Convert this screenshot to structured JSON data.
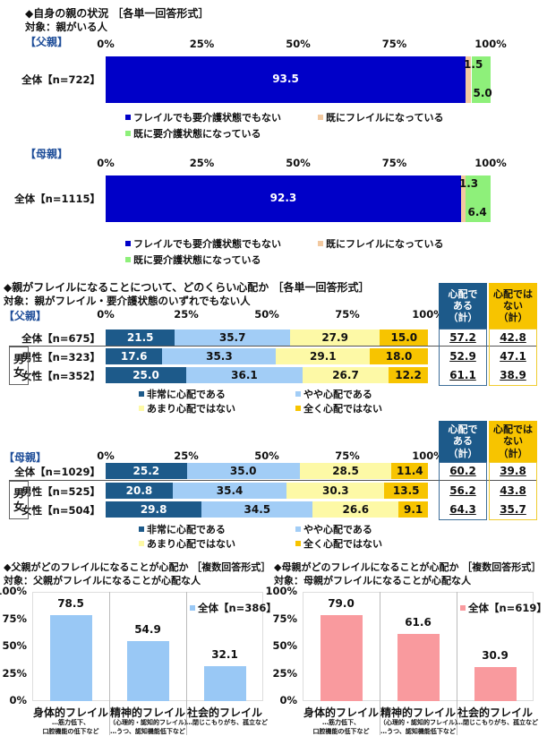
{
  "section1": {
    "title": "◆自身の親の状況 ［各単一回答形式］",
    "subtitle": "対象：親がいる人",
    "ticks": [
      "0%",
      "25%",
      "50%",
      "75%",
      "100%"
    ],
    "legend": [
      "フレイルでも要介護状態でもない",
      "既にフレイルになっている",
      "既に要介護状態になっている"
    ],
    "colors": [
      "#0000c8",
      "#f2c9a0",
      "#8ef07a"
    ]
  },
  "section2": {
    "title": "◆親がフレイルになることについて、どのくらい心配か ［各単一回答形式］",
    "subtitle": "対象：親がフレイル・要介護状態のいずれでもない人",
    "ticks": [
      "0%",
      "25%",
      "50%",
      "75%",
      "100%"
    ],
    "legend": [
      "非常に心配である",
      "やや心配である",
      "あまり心配ではない",
      "全く心配ではない"
    ],
    "colors": [
      "#1d5a8a",
      "#a2cdf6",
      "#fdf9a6",
      "#f7c400"
    ],
    "gender_label": [
      "男",
      "女"
    ],
    "summary_headers": [
      "心配で\nある\n（計）",
      "心配では\nない\n（計）"
    ],
    "summary_colors": [
      "#1d5a8a",
      "#f7c400"
    ]
  },
  "section3": {
    "ticks": [
      "0%",
      "25%",
      "50%",
      "75%",
      "100%"
    ]
  },
  "chart_data": [
    {
      "type": "bar",
      "orientation": "horizontal-stacked",
      "group": "【父親】",
      "categories": [
        "全体【n=722】"
      ],
      "series": [
        {
          "name": "フレイルでも要介護状態でもない",
          "values": [
            93.5
          ]
        },
        {
          "name": "既にフレイルになっている",
          "values": [
            1.5
          ]
        },
        {
          "name": "既に要介護状態になっている",
          "values": [
            5.0
          ]
        }
      ],
      "xlim": [
        0,
        100
      ]
    },
    {
      "type": "bar",
      "orientation": "horizontal-stacked",
      "group": "【母親】",
      "categories": [
        "全体【n=1115】"
      ],
      "series": [
        {
          "name": "フレイルでも要介護状態でもない",
          "values": [
            92.3
          ]
        },
        {
          "name": "既にフレイルになっている",
          "values": [
            1.3
          ]
        },
        {
          "name": "既に要介護状態になっている",
          "values": [
            6.4
          ]
        }
      ],
      "xlim": [
        0,
        100
      ]
    },
    {
      "type": "bar",
      "orientation": "horizontal-stacked",
      "group": "【父親】",
      "categories": [
        "全体【n=675】",
        "男性【n=323】",
        "女性【n=352】"
      ],
      "series": [
        {
          "name": "非常に心配である",
          "values": [
            21.5,
            17.6,
            25.0
          ]
        },
        {
          "name": "やや心配である",
          "values": [
            35.7,
            35.3,
            36.1
          ]
        },
        {
          "name": "あまり心配ではない",
          "values": [
            27.9,
            29.1,
            26.7
          ]
        },
        {
          "name": "全く心配ではない",
          "values": [
            15.0,
            18.0,
            12.2
          ]
        }
      ],
      "summary": {
        "worried_total": [
          "57.2",
          "52.9",
          "61.1"
        ],
        "not_worried_total": [
          "42.8",
          "47.1",
          "38.9"
        ]
      },
      "xlim": [
        0,
        100
      ]
    },
    {
      "type": "bar",
      "orientation": "horizontal-stacked",
      "group": "【母親】",
      "categories": [
        "全体【n=1029】",
        "男性【n=525】",
        "女性【n=504】"
      ],
      "series": [
        {
          "name": "非常に心配である",
          "values": [
            25.2,
            20.8,
            29.8
          ]
        },
        {
          "name": "やや心配である",
          "values": [
            35.0,
            35.4,
            34.5
          ]
        },
        {
          "name": "あまり心配ではない",
          "values": [
            28.5,
            30.3,
            26.6
          ]
        },
        {
          "name": "全く心配ではない",
          "values": [
            11.4,
            13.5,
            9.1
          ]
        }
      ],
      "summary": {
        "worried_total": [
          "60.2",
          "56.2",
          "64.3"
        ],
        "not_worried_total": [
          "39.8",
          "43.8",
          "35.7"
        ]
      },
      "xlim": [
        0,
        100
      ]
    },
    {
      "type": "bar",
      "title": "◆父親がどのフレイルになることが心配か ［複数回答形式］",
      "subtitle": "対象：父親がフレイルになることが心配な人",
      "legend": "全体【n=386】",
      "color": "#99c8f5",
      "categories": [
        "身体的フレイル",
        "精神的フレイル",
        "社会的フレイル"
      ],
      "category_notes": [
        [
          "…筋力低下、",
          "口腔機能の低下など"
        ],
        [
          "（心理的・認知的フレイル）",
          "…うつ、認知機能低下など"
        ],
        [
          "…閉じこもりがち、孤立など"
        ]
      ],
      "values": [
        78.5,
        54.9,
        32.1
      ],
      "ylim": [
        0,
        100
      ],
      "yticks": [
        "0%",
        "25%",
        "50%",
        "75%",
        "100%"
      ]
    },
    {
      "type": "bar",
      "title": "◆母親がどのフレイルになることが心配か ［複数回答形式］",
      "subtitle": "対象：母親がフレイルになることが心配な人",
      "legend": "全体【n=619】",
      "color": "#f99a9e",
      "categories": [
        "身体的フレイル",
        "精神的フレイル",
        "社会的フレイル"
      ],
      "category_notes": [
        [
          "…筋力低下、",
          "口腔機能の低下など"
        ],
        [
          "（心理的・認知的フレイル）",
          "…うつ、認知機能低下など"
        ],
        [
          "…閉じこもりがち、孤立など"
        ]
      ],
      "values": [
        79.0,
        61.6,
        30.9
      ],
      "ylim": [
        0,
        100
      ],
      "yticks": [
        "0%",
        "25%",
        "50%",
        "75%",
        "100%"
      ]
    }
  ]
}
